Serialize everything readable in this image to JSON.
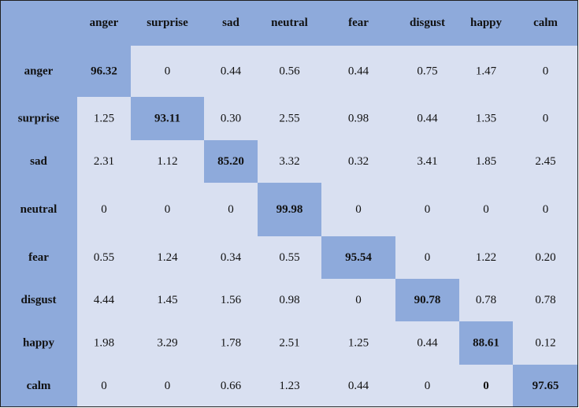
{
  "chart_data": {
    "type": "heatmap",
    "title": "",
    "xlabel": "",
    "ylabel": "",
    "columns": [
      "anger",
      "surprise",
      "sad",
      "neutral",
      "fear",
      "disgust",
      "happy",
      "calm"
    ],
    "rows": [
      "anger",
      "surprise",
      "sad",
      "neutral",
      "fear",
      "disgust",
      "happy",
      "calm"
    ],
    "values": [
      [
        "96.32",
        "0",
        "0.44",
        "0.56",
        "0.44",
        "0.75",
        "1.47",
        "0"
      ],
      [
        "1.25",
        "93.11",
        "0.30",
        "2.55",
        "0.98",
        "0.44",
        "1.35",
        "0"
      ],
      [
        "2.31",
        "1.12",
        "85.20",
        "3.32",
        "0.32",
        "3.41",
        "1.85",
        "2.45"
      ],
      [
        "0",
        "0",
        "0",
        "99.98",
        "0",
        "0",
        "0",
        "0"
      ],
      [
        "0.55",
        "1.24",
        "0.34",
        "0.55",
        "95.54",
        "0",
        "1.22",
        "0.20"
      ],
      [
        "4.44",
        "1.45",
        "1.56",
        "0.98",
        "0",
        "90.78",
        "0.78",
        "0.78"
      ],
      [
        "1.98",
        "3.29",
        "1.78",
        "2.51",
        "1.25",
        "0.44",
        "88.61",
        "0.12"
      ],
      [
        "0",
        "0",
        "0.66",
        "1.23",
        "0.44",
        "0",
        "0",
        "97.65"
      ]
    ],
    "bold_cells": [
      [
        7,
        6
      ]
    ],
    "colors": {
      "header": "#8eaadb",
      "diagonal": "#8eaadb",
      "cell": "#d9e0f1",
      "border": "#1f1f1f",
      "text": "#111111"
    }
  }
}
